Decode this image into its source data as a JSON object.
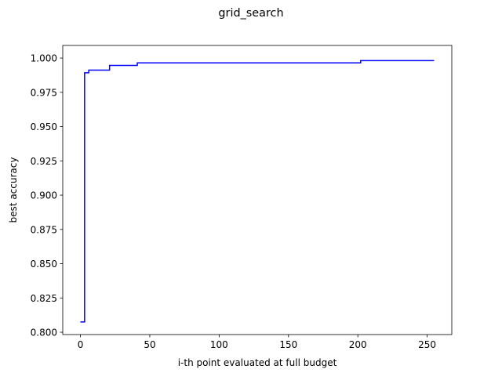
{
  "chart_data": {
    "type": "line",
    "title": "grid_search",
    "xlabel": "i-th point evaluated at full budget",
    "ylabel": "best accuracy",
    "xlim": [
      -12.75,
      267.75
    ],
    "ylim": [
      0.7983,
      1.0092
    ],
    "xticks": [
      0,
      50,
      100,
      150,
      200,
      250
    ],
    "yticks": [
      0.8,
      0.825,
      0.85,
      0.875,
      0.9,
      0.925,
      0.95,
      0.975,
      1.0
    ],
    "xtick_labels": [
      "0",
      "50",
      "100",
      "150",
      "200",
      "250"
    ],
    "ytick_labels": [
      "0.800",
      "0.825",
      "0.850",
      "0.875",
      "0.900",
      "0.925",
      "0.950",
      "0.975",
      "1.000"
    ],
    "grid": false,
    "legend": "none",
    "series": [
      {
        "color": "#0000ff",
        "step": "post",
        "x": [
          0,
          2,
          3,
          5,
          6,
          20,
          21,
          40,
          41,
          201,
          202,
          255
        ],
        "y": [
          0.8075,
          0.8075,
          0.9893,
          0.9893,
          0.9912,
          0.9912,
          0.9946,
          0.9946,
          0.9965,
          0.9965,
          0.9981,
          0.9981
        ]
      }
    ]
  }
}
